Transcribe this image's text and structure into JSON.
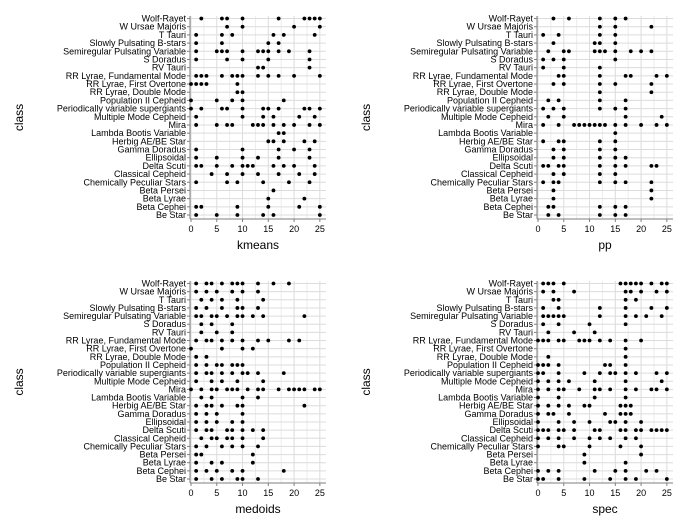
{
  "charts": [
    {
      "id": "p1",
      "type": "scatter",
      "xlabel": "kmeans",
      "ylabel": "class"
    },
    {
      "id": "p2",
      "type": "scatter",
      "xlabel": "pp",
      "ylabel": "class"
    },
    {
      "id": "p3",
      "type": "scatter",
      "xlabel": "medoids",
      "ylabel": "class"
    },
    {
      "id": "p4",
      "type": "scatter",
      "xlabel": "spec",
      "ylabel": "class"
    }
  ],
  "chart_data": [
    {
      "type": "scatter",
      "xlabel": "kmeans",
      "ylabel": "class",
      "xlim": [
        0,
        26
      ],
      "xticks": [
        0,
        5,
        10,
        15,
        20,
        25
      ],
      "grid": true,
      "categories": [
        "Be Star",
        "Beta Cephei",
        "Beta Lyrae",
        "Beta Persei",
        "Chemically Peculiar Stars",
        "Classical Cepheid",
        "Delta Scuti",
        "Ellipsoidal",
        "Gamma Doradus",
        "Herbig AE/BE Star",
        "Lambda Bootis Variable",
        "Mira",
        "Multiple Mode Cepheid",
        "Periodically variable supergiants",
        "Population II Cepheid",
        "RR Lyrae, Double Mode",
        "RR Lyrae, First Overtone",
        "RR Lyrae, Fundamental Mode",
        "RV Tauri",
        "S Doradus",
        "Semiregular Pulsating Variable",
        "Slowly Pulsating B-stars",
        "T Tauri",
        "W Ursae Majoris",
        "Wolf-Rayet"
      ],
      "points": {
        "Wolf-Rayet": [
          2,
          6,
          7,
          10,
          17,
          22,
          23,
          24,
          25
        ],
        "W Ursae Majoris": [
          7,
          10,
          20,
          25
        ],
        "T Tauri": [
          1,
          6,
          8,
          16,
          18,
          24
        ],
        "Slowly Pulsating B-stars": [
          1,
          6,
          15,
          17
        ],
        "Semiregular Pulsating Variable": [
          1,
          5,
          6,
          7,
          10,
          13,
          14,
          15,
          17,
          19,
          23
        ],
        "S Doradus": [
          1,
          7,
          10,
          15,
          23
        ],
        "RV Tauri": [
          13,
          14,
          23
        ],
        "RR Lyrae, Fundamental Mode": [
          1,
          2,
          3,
          6,
          8,
          9,
          10,
          13,
          15,
          17,
          20,
          25
        ],
        "RR Lyrae, First Overtone": [
          0,
          1,
          2,
          3,
          9
        ],
        "RR Lyrae, Double Mode": [
          9,
          10
        ],
        "Population II Cepheid": [
          0,
          5,
          8,
          10,
          18
        ],
        "Periodically variable supergiants": [
          0,
          2,
          6,
          7,
          10,
          14,
          15,
          17,
          22,
          23,
          25
        ],
        "Multiple Mode Cepheid": [
          1,
          10,
          14,
          16,
          21,
          24
        ],
        "Mira": [
          1,
          5,
          7,
          8,
          12,
          13,
          14,
          16,
          18,
          20,
          23,
          25
        ],
        "Lambda Bootis Variable": [
          17,
          18
        ],
        "Herbig AE/BE Star": [
          15,
          16,
          18,
          22,
          24
        ],
        "Gamma Doradus": [
          1,
          10,
          17,
          20,
          23
        ],
        "Ellipsoidal": [
          1,
          5,
          10,
          13,
          17,
          23
        ],
        "Delta Scuti": [
          1,
          2,
          5,
          8,
          10,
          11,
          12,
          16,
          18,
          20,
          24
        ],
        "Classical Cepheid": [
          4,
          7,
          10,
          13,
          17,
          21,
          24
        ],
        "Chemically Peculiar Stars": [
          1,
          7,
          9,
          14,
          19,
          23
        ],
        "Beta Persei": [
          16
        ],
        "Beta Lyrae": [
          15,
          22
        ],
        "Beta Cephei": [
          1,
          2,
          9,
          15,
          21,
          25
        ],
        "Be Star": [
          1,
          5,
          9,
          14,
          16,
          25
        ]
      }
    },
    {
      "type": "scatter",
      "xlabel": "pp",
      "ylabel": "class",
      "xlim": [
        0,
        26
      ],
      "xticks": [
        0,
        5,
        10,
        15,
        20,
        25
      ],
      "grid": true,
      "categories": [
        "Be Star",
        "Beta Cephei",
        "Beta Lyrae",
        "Beta Persei",
        "Chemically Peculiar Stars",
        "Classical Cepheid",
        "Delta Scuti",
        "Ellipsoidal",
        "Gamma Doradus",
        "Herbig AE/BE Star",
        "Lambda Bootis Variable",
        "Mira",
        "Multiple Mode Cepheid",
        "Periodically variable supergiants",
        "Population II Cepheid",
        "RR Lyrae, Double Mode",
        "RR Lyrae, First Overtone",
        "RR Lyrae, Fundamental Mode",
        "RV Tauri",
        "S Doradus",
        "Semiregular Pulsating Variable",
        "Slowly Pulsating B-stars",
        "T Tauri",
        "W Ursae Majoris",
        "Wolf-Rayet"
      ],
      "points": {
        "Wolf-Rayet": [
          3,
          6,
          12,
          15,
          17
        ],
        "W Ursae Majoris": [
          12,
          15,
          22
        ],
        "T Tauri": [
          1,
          4,
          12,
          15
        ],
        "Slowly Pulsating B-stars": [
          3,
          11,
          12,
          15
        ],
        "Semiregular Pulsating Variable": [
          2,
          5,
          6,
          11,
          12,
          13,
          15,
          18,
          20,
          22
        ],
        "S Doradus": [
          1,
          3,
          5,
          15
        ],
        "RV Tauri": [
          1,
          5,
          12
        ],
        "RR Lyrae, Fundamental Mode": [
          4,
          5,
          12,
          17,
          18,
          23,
          25
        ],
        "RR Lyrae, First Overtone": [
          3,
          5,
          12,
          15,
          22
        ],
        "RR Lyrae, Double Mode": [
          12,
          22
        ],
        "Population II Cepheid": [
          2,
          4,
          12,
          17
        ],
        "Periodically variable supergiants": [
          1,
          3,
          5,
          12,
          15,
          17
        ],
        "Multiple Mode Cepheid": [
          2,
          5,
          17,
          24
        ],
        "Mira": [
          1,
          4,
          7,
          8,
          9,
          10,
          11,
          12,
          13,
          15,
          17,
          20,
          23,
          25
        ],
        "Lambda Bootis Variable": [
          15
        ],
        "Herbig AE/BE Star": [
          1,
          4,
          5,
          12,
          15
        ],
        "Gamma Doradus": [
          3,
          5,
          12,
          15
        ],
        "Ellipsoidal": [
          3,
          5,
          12,
          15,
          17
        ],
        "Delta Scuti": [
          1,
          2,
          4,
          5,
          12,
          15,
          17,
          22,
          23
        ],
        "Classical Cepheid": [
          3,
          5,
          12,
          15
        ],
        "Chemically Peculiar Stars": [
          1,
          3,
          4,
          12,
          15,
          17,
          22
        ],
        "Beta Persei": [
          3,
          22
        ],
        "Beta Lyrae": [
          3,
          22
        ],
        "Beta Cephei": [
          2,
          3,
          12,
          15,
          17
        ],
        "Be Star": [
          2,
          4,
          12,
          15,
          17
        ]
      }
    },
    {
      "type": "scatter",
      "xlabel": "medoids",
      "ylabel": "class",
      "xlim": [
        0,
        26
      ],
      "xticks": [
        0,
        5,
        10,
        15,
        20,
        25
      ],
      "grid": true,
      "categories": [
        "Be Star",
        "Beta Cephei",
        "Beta Lyrae",
        "Beta Persei",
        "Chemically Peculiar Stars",
        "Classical Cepheid",
        "Delta Scuti",
        "Ellipsoidal",
        "Gamma Doradus",
        "Herbig AE/BE Star",
        "Lambda Bootis Variable",
        "Mira",
        "Multiple Mode Cepheid",
        "Periodically variable supergiants",
        "Population II Cepheid",
        "RR Lyrae, Double Mode",
        "RR Lyrae, First Overtone",
        "RR Lyrae, Fundamental Mode",
        "RV Tauri",
        "S Doradus",
        "Semiregular Pulsating Variable",
        "Slowly Pulsating B-stars",
        "T Tauri",
        "W Ursae Majoris",
        "Wolf-Rayet"
      ],
      "points": {
        "Wolf-Rayet": [
          1,
          3,
          4,
          6,
          8,
          9,
          10,
          13,
          16,
          19
        ],
        "W Ursae Majoris": [
          1,
          3,
          5,
          8,
          10,
          13
        ],
        "T Tauri": [
          2,
          4,
          6,
          9,
          14
        ],
        "Slowly Pulsating B-stars": [
          1,
          3,
          6,
          9,
          10,
          13
        ],
        "Semiregular Pulsating Variable": [
          1,
          2,
          4,
          5,
          7,
          9,
          10,
          12,
          14,
          22
        ],
        "S Doradus": [
          2,
          4,
          8
        ],
        "RV Tauri": [
          2,
          5,
          8
        ],
        "RR Lyrae, Fundamental Mode": [
          1,
          3,
          4,
          6,
          8,
          10,
          13,
          15,
          19,
          21
        ],
        "RR Lyrae, First Overtone": [
          0,
          6,
          10,
          12
        ],
        "RR Lyrae, Double Mode": [
          1,
          3
        ],
        "Population II Cepheid": [
          1,
          3,
          5,
          6,
          8,
          9,
          10
        ],
        "Periodically variable supergiants": [
          1,
          3,
          4,
          6,
          8,
          10,
          11,
          13,
          18
        ],
        "Multiple Mode Cepheid": [
          1,
          4,
          6,
          9,
          14
        ],
        "Mira": [
          0,
          2,
          4,
          5,
          7,
          8,
          9,
          11,
          13,
          14,
          17,
          19,
          20,
          21,
          22,
          24,
          25
        ],
        "Lambda Bootis Variable": [
          2,
          4,
          10,
          13
        ],
        "Herbig AE/BE Star": [
          1,
          3,
          4,
          6,
          9,
          10,
          22
        ],
        "Gamma Doradus": [
          1,
          3,
          5,
          10
        ],
        "Ellipsoidal": [
          1,
          3,
          5,
          8,
          10
        ],
        "Delta Scuti": [
          1,
          3,
          4,
          7,
          8,
          10,
          12,
          14
        ],
        "Classical Cepheid": [
          2,
          4,
          5,
          7,
          8,
          10,
          14
        ],
        "Chemically Peculiar Stars": [
          1,
          3,
          6,
          8,
          10,
          13
        ],
        "Beta Persei": [
          1,
          2,
          12
        ],
        "Beta Lyrae": [
          1,
          4,
          6,
          12
        ],
        "Beta Cephei": [
          1,
          3,
          5,
          8,
          10,
          18
        ],
        "Be Star": [
          1,
          4,
          6,
          9,
          10,
          13
        ]
      }
    },
    {
      "type": "scatter",
      "xlabel": "spec",
      "ylabel": "class",
      "xlim": [
        0,
        26
      ],
      "xticks": [
        0,
        5,
        10,
        15,
        20,
        25
      ],
      "grid": true,
      "categories": [
        "Be Star",
        "Beta Cephei",
        "Beta Lyrae",
        "Beta Persei",
        "Chemically Peculiar Stars",
        "Classical Cepheid",
        "Delta Scuti",
        "Ellipsoidal",
        "Gamma Doradus",
        "Herbig AE/BE Star",
        "Lambda Bootis Variable",
        "Mira",
        "Multiple Mode Cepheid",
        "Periodically variable supergiants",
        "Population II Cepheid",
        "RR Lyrae, Double Mode",
        "RR Lyrae, First Overtone",
        "RR Lyrae, Fundamental Mode",
        "RV Tauri",
        "S Doradus",
        "Semiregular Pulsating Variable",
        "Slowly Pulsating B-stars",
        "T Tauri",
        "W Ursae Majoris",
        "Wolf-Rayet"
      ],
      "points": {
        "Wolf-Rayet": [
          1,
          2,
          3,
          5,
          16,
          17,
          18,
          19,
          20,
          22,
          24,
          25
        ],
        "W Ursae Majoris": [
          1,
          3,
          7,
          17,
          18,
          20,
          23,
          25
        ],
        "T Tauri": [
          3,
          4,
          17,
          19
        ],
        "Slowly Pulsating B-stars": [
          1,
          4,
          12,
          17,
          22,
          25
        ],
        "Semiregular Pulsating Variable": [
          1,
          2,
          3,
          4,
          5,
          12,
          17,
          19,
          21,
          24
        ],
        "S Doradus": [
          1,
          4,
          10,
          17
        ],
        "RV Tauri": [
          2,
          7,
          11
        ],
        "RR Lyrae, Fundamental Mode": [
          0,
          1,
          2,
          4,
          5,
          8,
          9,
          10,
          12,
          14,
          17,
          20
        ],
        "RR Lyrae, First Overtone": [
          17
        ],
        "RR Lyrae, Double Mode": [
          2,
          17
        ],
        "Population II Cepheid": [
          0,
          1,
          2,
          4,
          13,
          14,
          17
        ],
        "Periodically variable supergiants": [
          0,
          1,
          4,
          9,
          12,
          14,
          15,
          17,
          19,
          23,
          25
        ],
        "Multiple Mode Cepheid": [
          0,
          2,
          4,
          6,
          11,
          17,
          24
        ],
        "Mira": [
          0,
          2,
          4,
          5,
          8,
          11,
          12,
          14,
          17,
          19,
          22,
          23,
          25
        ],
        "Lambda Bootis Variable": [
          0,
          4,
          11,
          17
        ],
        "Herbig AE/BE Star": [
          0,
          2,
          4,
          6,
          9,
          10,
          16,
          17,
          18
        ],
        "Gamma Doradus": [
          0,
          2,
          3,
          6,
          13,
          16,
          17,
          18
        ],
        "Ellipsoidal": [
          0,
          4,
          7,
          10,
          14,
          15,
          17,
          20
        ],
        "Delta Scuti": [
          0,
          1,
          2,
          4,
          5,
          7,
          11,
          12,
          16,
          17,
          19,
          20,
          22,
          23,
          24,
          25
        ],
        "Classical Cepheid": [
          0,
          2,
          4,
          7,
          10,
          12,
          14,
          17,
          19
        ],
        "Chemically Peculiar Stars": [
          0,
          4,
          5,
          10,
          16,
          20
        ],
        "Beta Persei": [
          9,
          20
        ],
        "Beta Lyrae": [
          9,
          17
        ],
        "Beta Cephei": [
          0,
          2,
          4,
          11,
          15,
          17,
          21,
          23
        ],
        "Be Star": [
          0,
          1,
          4,
          9,
          14,
          17,
          19,
          25
        ]
      }
    }
  ]
}
